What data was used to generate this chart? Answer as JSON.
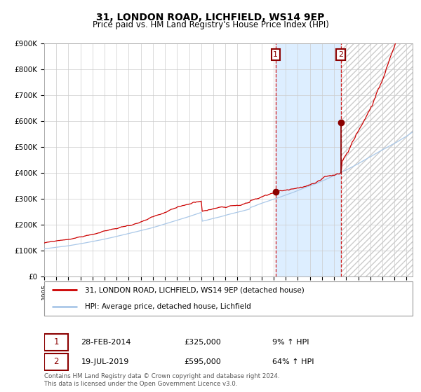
{
  "title": "31, LONDON ROAD, LICHFIELD, WS14 9EP",
  "subtitle": "Price paid vs. HM Land Registry's House Price Index (HPI)",
  "ylim": [
    0,
    900000
  ],
  "yticks": [
    0,
    100000,
    200000,
    300000,
    400000,
    500000,
    600000,
    700000,
    800000,
    900000
  ],
  "xlim_start": 1995.0,
  "xlim_end": 2025.5,
  "transaction1_date": 2014.16,
  "transaction1_price": 325000,
  "transaction2_date": 2019.55,
  "transaction2_price": 595000,
  "shaded_region_color": "#ddeeff",
  "hpi_line_color": "#aac8e8",
  "property_line_color": "#cc0000",
  "grid_color": "#cccccc",
  "background_color": "#ffffff",
  "legend_entry1": "31, LONDON ROAD, LICHFIELD, WS14 9EP (detached house)",
  "legend_entry2": "HPI: Average price, detached house, Lichfield",
  "table_row1_date": "28-FEB-2014",
  "table_row1_price": "£325,000",
  "table_row1_hpi": "9% ↑ HPI",
  "table_row2_date": "19-JUL-2019",
  "table_row2_price": "£595,000",
  "table_row2_hpi": "64% ↑ HPI",
  "footnote": "Contains HM Land Registry data © Crown copyright and database right 2024.\nThis data is licensed under the Open Government Licence v3.0.",
  "title_fontsize": 10,
  "subtitle_fontsize": 8.5
}
